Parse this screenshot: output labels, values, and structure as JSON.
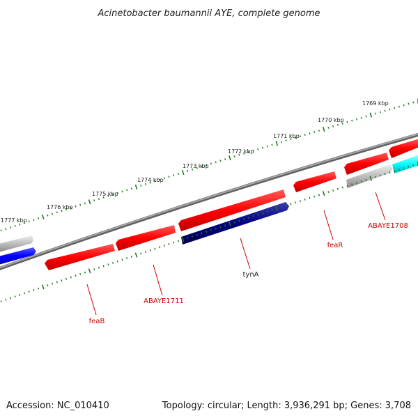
{
  "title": "Acinetobacter baumannii AYE, complete genome",
  "footer": {
    "accession": "Accession: NC_010410",
    "summary": "Topology: circular; Length: 3,936,291 bp; Genes: 3,708"
  },
  "colors": {
    "backbone": "#8c8c8c",
    "tick": "#1e7a1e",
    "label": "#cc0000",
    "red_gene": "#ff0000",
    "navy_gene": "#000080",
    "blue_gene": "#0000ff",
    "cyan_gene": "#00ffff",
    "grey_gene": "#bdbdbd"
  },
  "kbp_labels": [
    "1777 kbp",
    "1776 kbp",
    "1775 kbp",
    "1774 kbp",
    "1773 kbp",
    "1772 kbp",
    "1771 kbp",
    "1770 kbp",
    "1769 kbp"
  ],
  "gene_labels": {
    "feaB": "feaB",
    "ABAYE1711": "ABAYE1711",
    "tynA": "tynA",
    "feaR": "feaR",
    "ABAYE1708": "ABAYE1708"
  }
}
